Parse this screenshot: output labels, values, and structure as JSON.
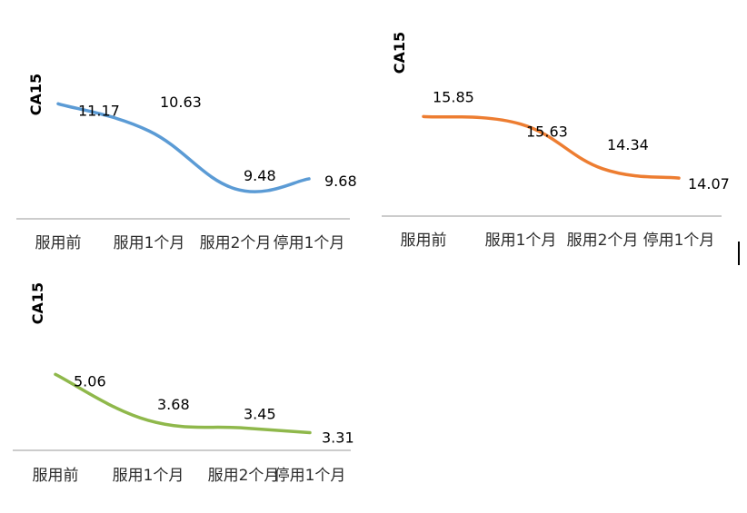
{
  "chart_data": [
    {
      "type": "line",
      "ylabel": "CA15",
      "categories": [
        "服用前",
        "服用1个月",
        "服用2个月",
        "停用1个月"
      ],
      "series": [
        {
          "values": [
            11.17,
            10.63,
            9.48,
            9.68
          ]
        }
      ],
      "color": "#5b9bd5",
      "ylim": [
        9.3,
        11.5
      ],
      "grid": false
    },
    {
      "type": "line",
      "ylabel": "CA15",
      "categories": [
        "服用前",
        "服用1个月",
        "服用2个月",
        "停用1个月"
      ],
      "series": [
        {
          "values": [
            15.85,
            15.63,
            14.34,
            14.07
          ]
        }
      ],
      "color": "#ed7d31",
      "ylim": [
        13.6,
        16.2
      ],
      "grid": false
    },
    {
      "type": "line",
      "ylabel": "CA15",
      "categories": [
        "服用前",
        "服用1个月",
        "服用2个月",
        "停用1个月"
      ],
      "series": [
        {
          "values": [
            5.06,
            3.68,
            3.45,
            3.31
          ]
        }
      ],
      "color": "#8fb84b",
      "ylim": [
        3.05,
        5.45
      ],
      "grid": false
    }
  ]
}
